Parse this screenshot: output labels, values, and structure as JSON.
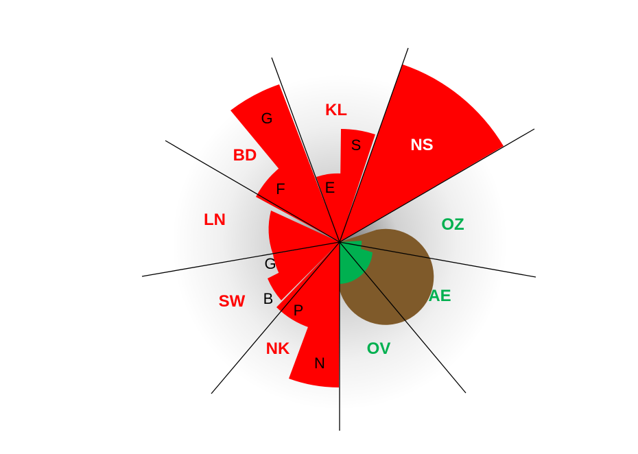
{
  "colors": {
    "red": "#ff0000",
    "green": "#00b050",
    "brown": "#7f5a2a",
    "black": "#000000",
    "white": "#ffffff"
  },
  "regions": [
    {
      "code": "KL",
      "color": "red"
    },
    {
      "code": "NS",
      "color": "white"
    },
    {
      "code": "OZ",
      "color": "green"
    },
    {
      "code": "AE",
      "color": "green"
    },
    {
      "code": "OV",
      "color": "green"
    },
    {
      "code": "NK",
      "color": "red"
    },
    {
      "code": "SW",
      "color": "red"
    },
    {
      "code": "LN",
      "color": "red"
    },
    {
      "code": "BD",
      "color": "red"
    }
  ],
  "subsector_labels": [
    "G",
    "F",
    "E",
    "S",
    "G",
    "B",
    "P",
    "N"
  ]
}
